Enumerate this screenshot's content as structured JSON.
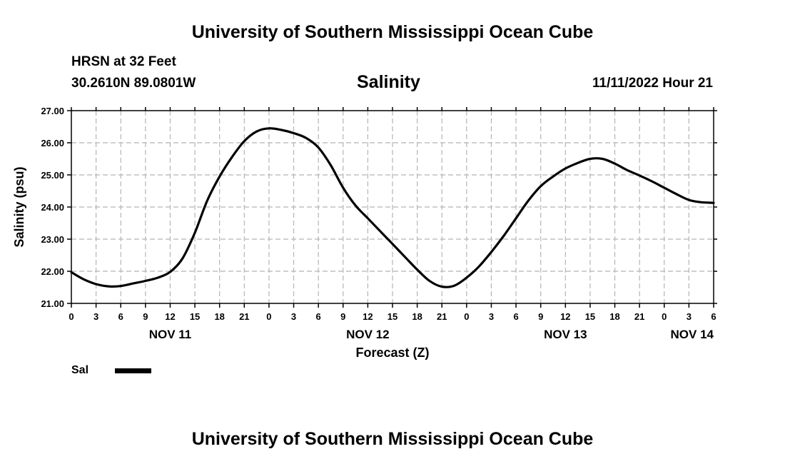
{
  "header": {
    "title_top": "University of Southern Mississippi Ocean Cube",
    "station": "HRSN at 32 Feet",
    "coords": "30.2610N  89.0801W",
    "variable": "Salinity",
    "issued": "11/11/2022 Hour 21",
    "title_bottom": "University of Southern Mississippi Ocean Cube"
  },
  "legend": {
    "label": "Sal",
    "color": "#000000"
  },
  "chart_data": {
    "type": "line",
    "title": "Salinity",
    "xlabel": "Forecast (Z)",
    "ylabel": "Salinity (psu)",
    "ylim": [
      21.0,
      27.0
    ],
    "yticks": [
      "21.00",
      "22.00",
      "23.00",
      "24.00",
      "25.00",
      "26.00",
      "27.00"
    ],
    "xlim_hours": [
      0,
      78
    ],
    "xtick_labels": [
      "0",
      "3",
      "6",
      "9",
      "12",
      "15",
      "18",
      "21",
      "0",
      "3",
      "6",
      "9",
      "12",
      "15",
      "18",
      "21",
      "0",
      "3",
      "6",
      "9",
      "12",
      "15",
      "18",
      "21",
      "0",
      "3",
      "6"
    ],
    "date_labels": [
      {
        "text": "NOV 11",
        "at_hour": 12
      },
      {
        "text": "NOV 12",
        "at_hour": 36
      },
      {
        "text": "NOV 13",
        "at_hour": 60
      },
      {
        "text": "NOV 14",
        "at_hour": 78
      }
    ],
    "grid": true,
    "series": [
      {
        "name": "Sal",
        "x_hours": [
          0,
          1.5,
          3,
          4.5,
          6,
          7.5,
          9,
          10.5,
          12,
          13.5,
          15,
          16.5,
          18,
          19.5,
          21,
          22.5,
          24,
          25.5,
          27,
          28.5,
          30,
          31.5,
          33,
          34.5,
          36,
          37.5,
          39,
          40.5,
          42,
          43.5,
          45,
          46.5,
          48,
          49.5,
          51,
          52.5,
          54,
          55.5,
          57,
          58.5,
          60,
          61.5,
          63,
          64.5,
          66,
          67.5,
          69,
          70.5,
          72,
          73.5,
          75,
          76.5,
          78
        ],
        "values": [
          21.97,
          21.75,
          21.6,
          21.53,
          21.54,
          21.62,
          21.7,
          21.8,
          21.98,
          22.4,
          23.2,
          24.2,
          24.95,
          25.55,
          26.05,
          26.35,
          26.45,
          26.4,
          26.3,
          26.15,
          25.85,
          25.3,
          24.6,
          24.05,
          23.65,
          23.25,
          22.85,
          22.45,
          22.05,
          21.7,
          21.52,
          21.55,
          21.8,
          22.15,
          22.6,
          23.1,
          23.65,
          24.2,
          24.65,
          24.95,
          25.2,
          25.37,
          25.5,
          25.5,
          25.35,
          25.15,
          24.98,
          24.8,
          24.6,
          24.4,
          24.22,
          24.15,
          24.13
        ]
      }
    ]
  }
}
